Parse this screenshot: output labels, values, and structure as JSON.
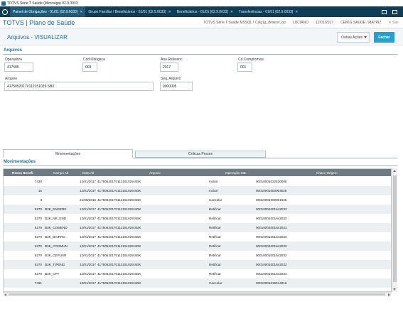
{
  "window": {
    "title": "TOTVS Série T Saúde (Microsiga) 02.9.0033"
  },
  "tabs": [
    {
      "label": "Painel de Obrigações - 01/01 [02.9.0033]",
      "active": true
    },
    {
      "label": "Grupo Familiar / Beneficiários - 01/01 [02.9.0033]",
      "active": false
    },
    {
      "label": "Beneficiários - 01/01 [02.9.0033]",
      "active": false
    },
    {
      "label": "Transferências - 01/01 [02.9.0033]",
      "active": false
    }
  ],
  "header": {
    "brand": "TOTVS | Plano de Saúde",
    "product": "TOTVS Série T Saúde MSSQL7 Csig1g_desenv_op",
    "user": "LUCIANO",
    "date": "12/01/2017",
    "company": "CEMIG SAUDE / MATRIZ",
    "exit_label": "✕ Sair"
  },
  "page": {
    "title": "Arquivos - VISUALIZAR",
    "other_actions_label": "Outras Ações",
    "close_label": "Fechar"
  },
  "sections": {
    "files_label": "Arquivos",
    "movements_label": "Movimentações"
  },
  "fields": {
    "operadora": {
      "label": "Operadora",
      "value": "417505"
    },
    "cod_obrigacao": {
      "label": "Cod Obrigaca",
      "value": "003"
    },
    "ano_referencia": {
      "label": "Ano Referenc",
      "value": "2017"
    },
    "cd_compromisso": {
      "label": "Cd Compromiss",
      "value": "001"
    },
    "arquivo": {
      "label": "Arquivo",
      "value": "41750520170112151029.SBX"
    },
    "seq_arquivo": {
      "label": "Seq. Arquivo",
      "value": "0000005"
    }
  },
  "form_tabs": [
    {
      "label": "Movimentações",
      "active": true
    },
    {
      "label": "Críticas Proces",
      "active": false
    }
  ],
  "grid": {
    "columns": [
      "Recno Benefi",
      "Campo Alt",
      "Data Alt",
      "Arquivo",
      "Operação SIB",
      "Chave Origem"
    ],
    "rows": [
      [
        "7430",
        "",
        "12/01/2017",
        "41750520170112151029.SBX",
        "Incluir",
        "00010001022530005"
      ],
      [
        "16",
        "",
        "12/01/2017",
        "41750520170112151029.SBX",
        "Incluir",
        "00010001000004025"
      ],
      [
        "3",
        "",
        "21/09/2016",
        "41750520170112151029.SBX",
        "Cancelar",
        "00010001000001025"
      ],
      [
        "5270",
        "B3K_ENDERE",
        "12/01/2017",
        "41750520170112151029.SBX",
        "Retificar",
        "00010001001642033"
      ],
      [
        "5270",
        "B3K_NR_END",
        "12/01/2017",
        "41750520170112151029.SBX",
        "Retificar",
        "00010001001642033"
      ],
      [
        "5270",
        "B3K_COMEND",
        "12/01/2017",
        "41750520170112151029.SBX",
        "Retificar",
        "00010001001642033"
      ],
      [
        "5270",
        "B3K_BAIRRO",
        "12/01/2017",
        "41750520170112151029.SBX",
        "Retificar",
        "00010001001642033"
      ],
      [
        "5270",
        "B3K_CODMUN",
        "12/01/2017",
        "41750520170112151029.SBX",
        "Retificar",
        "00010001001642033"
      ],
      [
        "5270",
        "B3K_CEPUSR",
        "12/01/2017",
        "41750520170112151029.SBX",
        "Retificar",
        "00010001001642033"
      ],
      [
        "5270",
        "B3K_TIPEND",
        "12/01/2017",
        "41750520170112151029.SBX",
        "Retificar",
        "00010001001642033"
      ],
      [
        "5270",
        "B3K_CPF",
        "12/01/2017",
        "41750520170112151029.SBX",
        "Retificar",
        "00010001001642033"
      ],
      [
        "7431",
        "",
        "12/01/2017",
        "41750520170112151029.SBX",
        "Cancelar",
        "00010001015514016"
      ]
    ]
  },
  "icons": {
    "home": "home-icon",
    "mail": "mail-icon",
    "window": "window-icon"
  }
}
